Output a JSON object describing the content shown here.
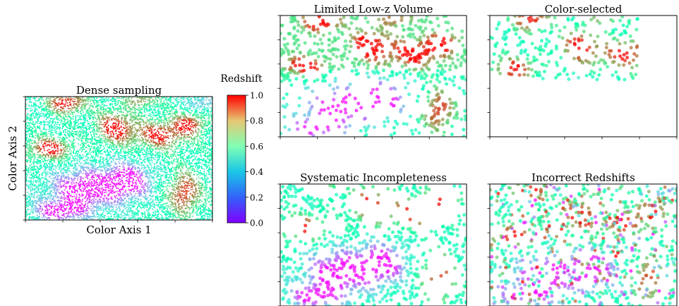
{
  "chart_data": [
    {
      "id": "dense",
      "type": "scatter",
      "title": "Dense sampling",
      "xlabel": "Color Axis 1",
      "ylabel": "Color Axis 2",
      "xlim": [
        0,
        1
      ],
      "ylim": [
        0,
        1
      ],
      "point_count": 9000,
      "color_by": "Redshift"
    },
    {
      "id": "lowz",
      "type": "scatter",
      "title": "Limited Low-z Volume",
      "xlim": [
        0,
        1
      ],
      "ylim": [
        0,
        1
      ],
      "point_count": 800,
      "color_by": "Redshift"
    },
    {
      "id": "colorsel",
      "type": "scatter",
      "title": "Color-selected",
      "xlim": [
        0,
        1
      ],
      "ylim": [
        0,
        1
      ],
      "selected_region": {
        "x": [
          0,
          0.79
        ],
        "y": [
          0.47,
          1.0
        ]
      },
      "point_count": 300,
      "color_by": "Redshift"
    },
    {
      "id": "sysinc",
      "type": "scatter",
      "title": "Systematic Incompleteness",
      "xlim": [
        0,
        1
      ],
      "ylim": [
        0,
        1
      ],
      "point_count": 800,
      "color_by": "Redshift"
    },
    {
      "id": "incorr",
      "type": "scatter",
      "title": "Incorrect Redshifts",
      "xlim": [
        0,
        1
      ],
      "ylim": [
        0,
        1
      ],
      "point_count": 900,
      "color_by": "Redshift"
    }
  ],
  "colorbar": {
    "label": "Redshift",
    "ticks": [
      "0.0",
      "0.2",
      "0.4",
      "0.6",
      "0.8",
      "1.0"
    ],
    "tick_values": [
      0.0,
      0.2,
      0.4,
      0.6,
      0.8,
      1.0
    ],
    "range": [
      0,
      1
    ],
    "colormap": "rainbow"
  }
}
